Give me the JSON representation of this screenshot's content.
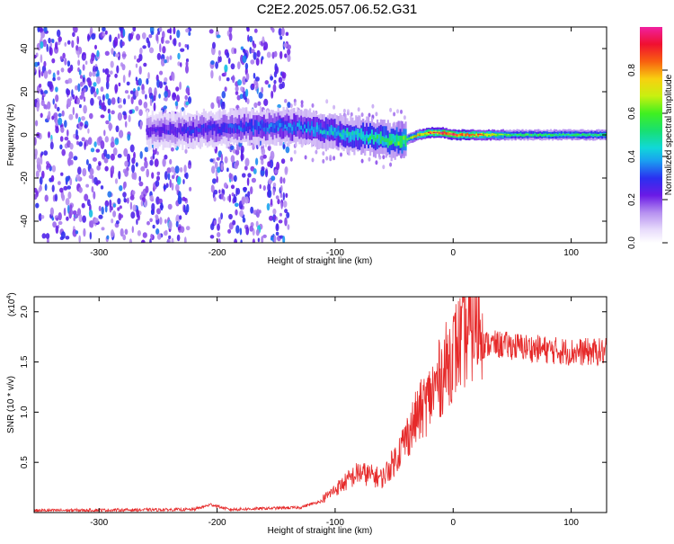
{
  "title": "C2E2.2025.057.06.52.G31",
  "colors": {
    "spectrum_low": "#c9b0f5",
    "spectrum_mid": "#6b1ee8",
    "snr_line": "#e62a2a",
    "axis": "#000000"
  },
  "chart_data": [
    {
      "type": "heatmap",
      "name": "spectrogram",
      "xlabel": "Height of straight line (km)",
      "ylabel": "Frequency (Hz)",
      "xlim": [
        -355,
        130
      ],
      "ylim": [
        -50,
        50
      ],
      "xticks": [
        -300,
        -200,
        -100,
        0,
        100
      ],
      "xtick_labels": [
        "-300",
        "-200",
        "-100",
        "0",
        "100"
      ],
      "yticks": [
        -40,
        -20,
        0,
        20,
        40
      ],
      "ytick_labels": [
        "-40",
        "-20",
        "0",
        "20",
        "40"
      ],
      "colorbar": {
        "label": "Normalized spectral amplitude",
        "range": [
          0,
          1
        ],
        "ticks": [
          0.0,
          0.2,
          0.4,
          0.6,
          0.8
        ],
        "tick_labels": [
          "0.0",
          "0.2",
          "0.4",
          "0.6",
          "0.8"
        ]
      },
      "ridge": {
        "x": [
          -250,
          -200,
          -150,
          -120,
          -90,
          -70,
          -50,
          -40,
          -30,
          -20,
          -10,
          0,
          20,
          50,
          100,
          130
        ],
        "center_hz": [
          2,
          3,
          4,
          3,
          0,
          -1,
          -3,
          -2,
          0,
          1,
          1,
          0,
          0,
          0,
          0,
          0
        ],
        "amplitude": [
          0.25,
          0.3,
          0.35,
          0.4,
          0.45,
          0.5,
          0.55,
          0.6,
          0.75,
          0.9,
          0.95,
          0.95,
          0.85,
          0.55,
          0.55,
          0.55
        ]
      }
    },
    {
      "type": "line",
      "name": "snr",
      "xlabel": "Height of straight line (km)",
      "ylabel": "SNR (10 * v/v)",
      "multiplier_label": "(x10",
      "multiplier_exp": "4",
      "multiplier_close": ")",
      "xlim": [
        -355,
        130
      ],
      "ylim": [
        0,
        2.15
      ],
      "xticks": [
        -300,
        -200,
        -100,
        0,
        100
      ],
      "xtick_labels": [
        "-300",
        "-200",
        "-100",
        "0",
        "100"
      ],
      "yticks": [
        0.5,
        1.0,
        1.5,
        2.0
      ],
      "ytick_labels": [
        "0.5",
        "1.0",
        "1.5",
        "2.0"
      ],
      "envelope": {
        "x": [
          -355,
          -220,
          -205,
          -190,
          -130,
          -110,
          -100,
          -80,
          -60,
          -50,
          -40,
          -30,
          -20,
          -10,
          0,
          10,
          20,
          30,
          50,
          80,
          100,
          130
        ],
        "y": [
          0.02,
          0.03,
          0.08,
          0.03,
          0.05,
          0.12,
          0.2,
          0.35,
          0.3,
          0.45,
          0.65,
          0.85,
          1.0,
          1.2,
          1.4,
          1.55,
          1.65,
          1.68,
          1.66,
          1.62,
          1.6,
          1.6
        ]
      }
    }
  ]
}
